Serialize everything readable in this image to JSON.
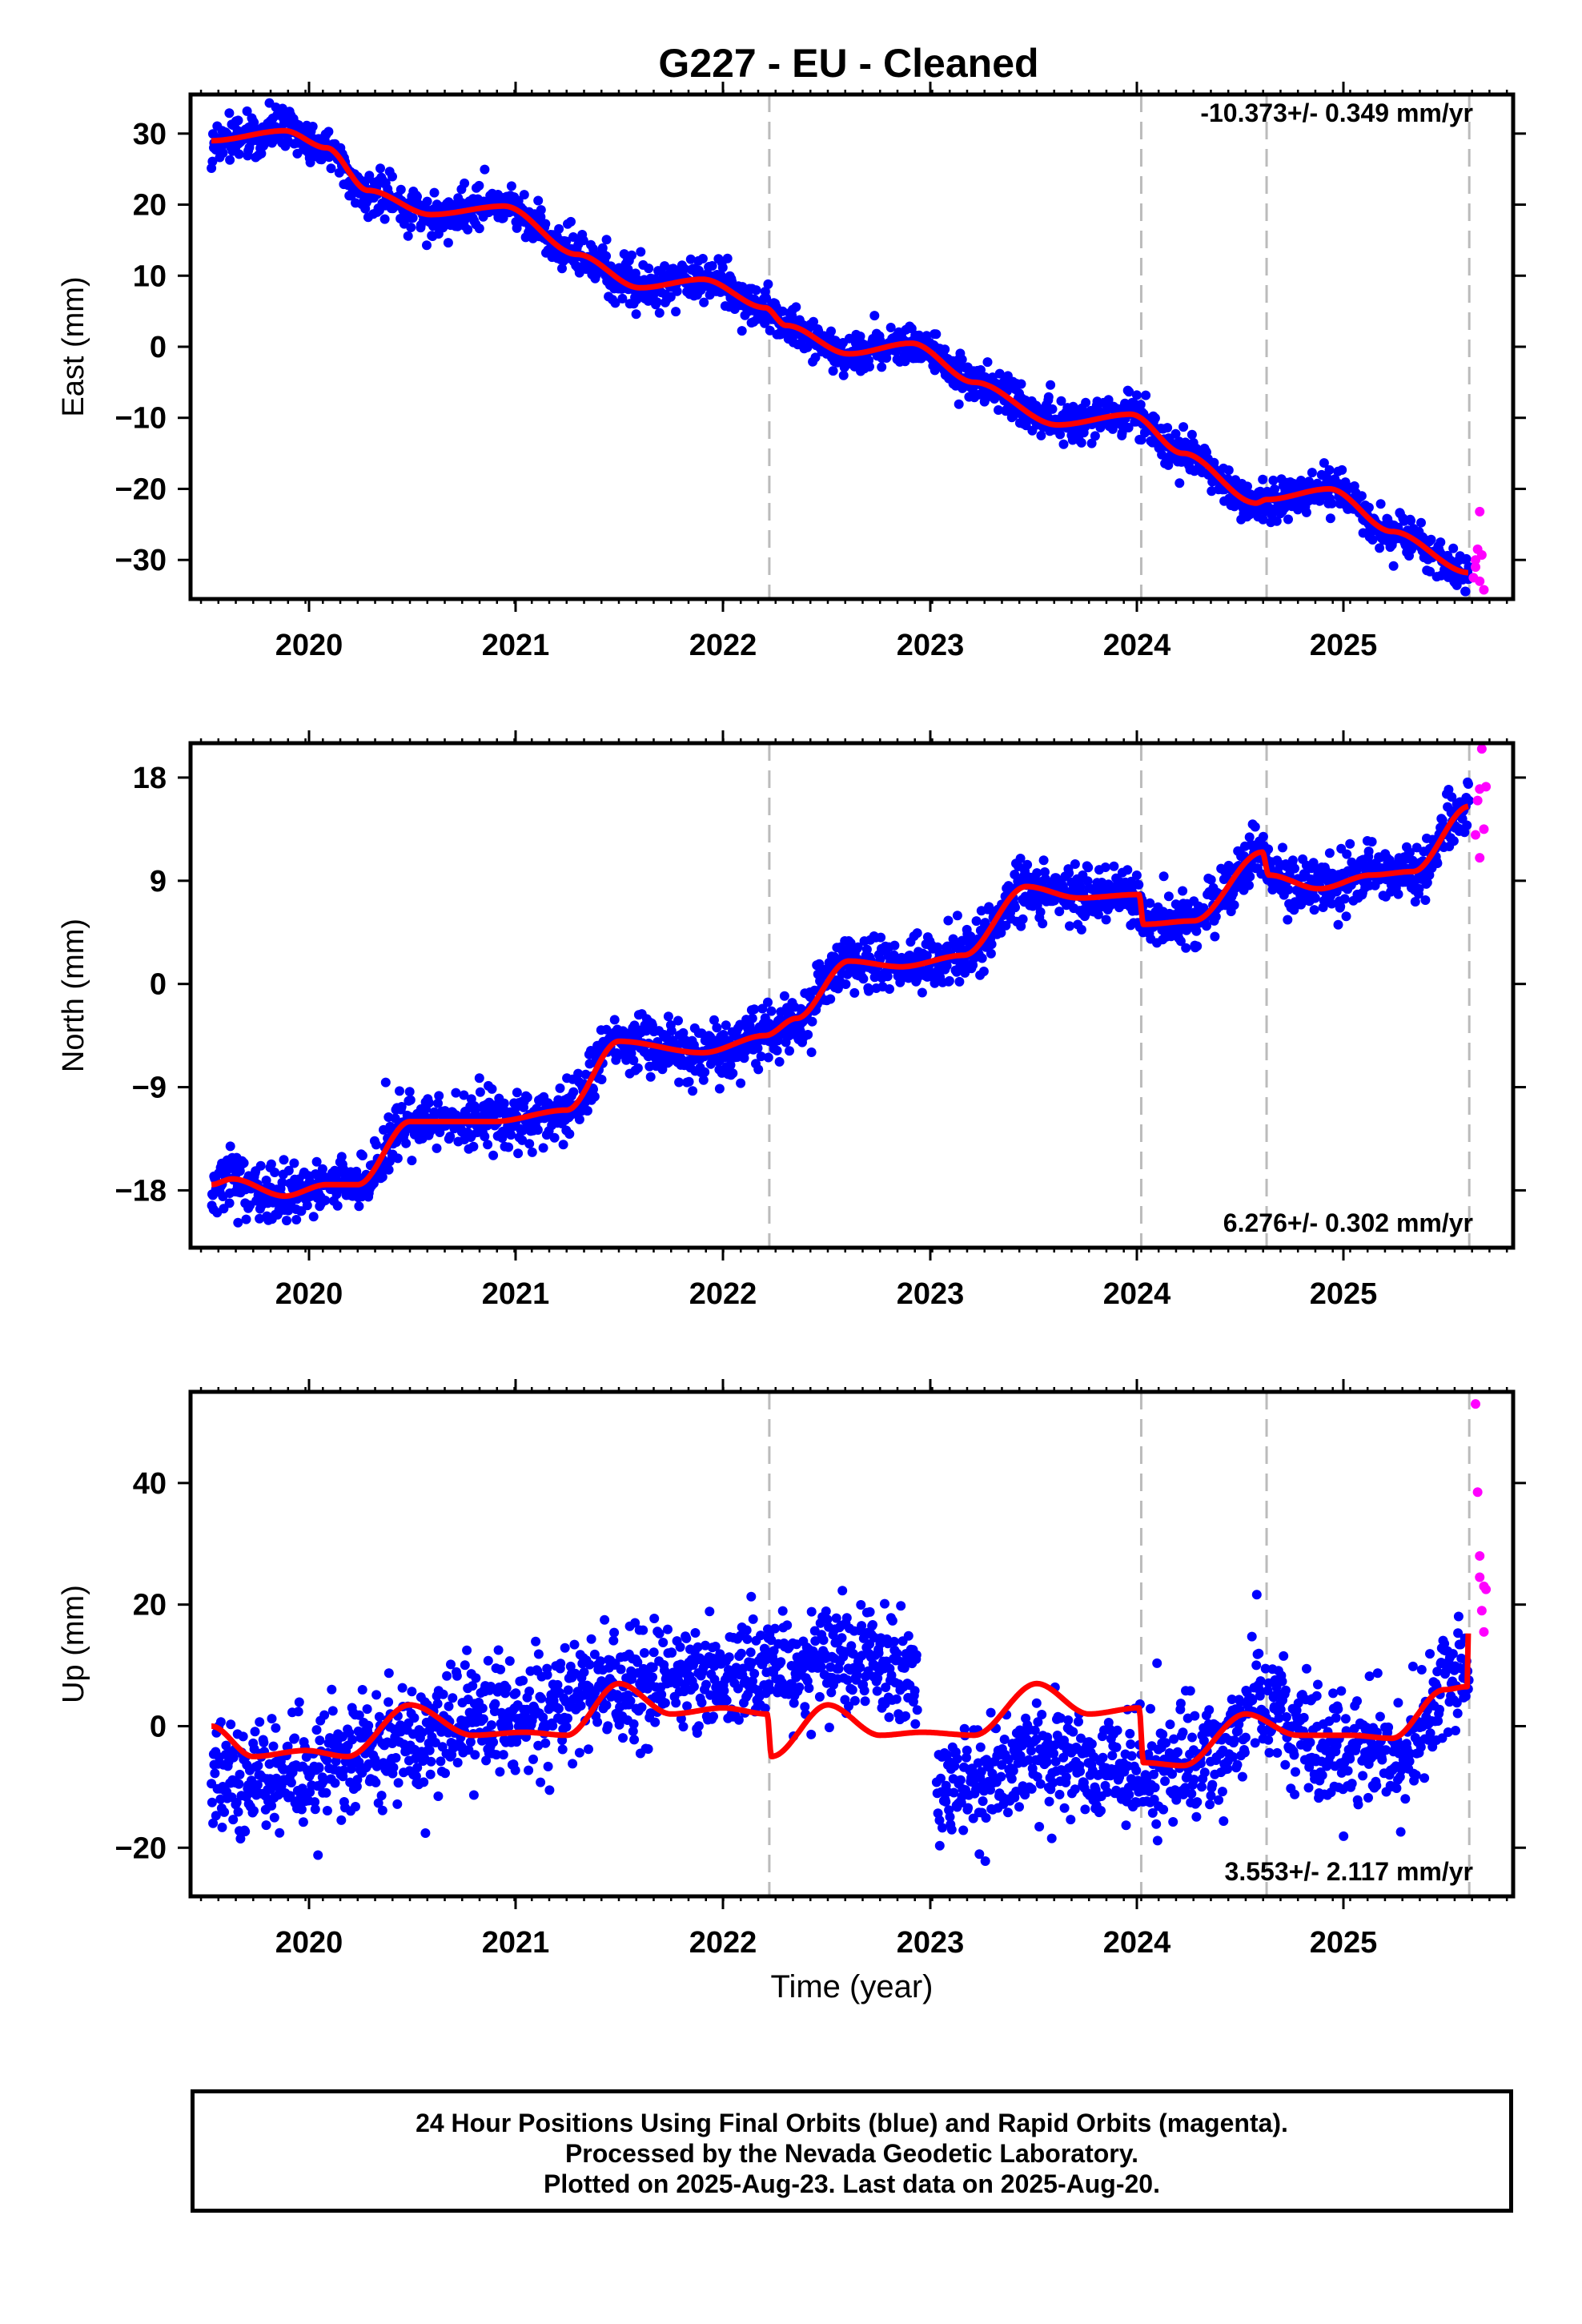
{
  "title": "G227  - EU - Cleaned",
  "xlabel": "Time (year)",
  "footer": {
    "line1": "24 Hour Positions Using Final Orbits (blue) and Rapid Orbits (magenta).",
    "line2": "Processed by the Nevada Geodetic Laboratory.",
    "line3": "Plotted on 2025-Aug-23. Last data on 2025-Aug-20."
  },
  "colors": {
    "final_orbits": "#0000ff",
    "rapid_orbits": "#ff00ff",
    "model": "#ff0000",
    "event_lines": "#bbbbbb"
  },
  "chart_data": [
    {
      "type": "scatter",
      "component": "east",
      "ylabel": "East (mm)",
      "rate_label": "-10.373+/- 0.349 mm/yr",
      "xlim": [
        2019.45,
        2025.78
      ],
      "ylim": [
        -35.5,
        35.5
      ],
      "xticks": [
        "2020",
        "2021",
        "2022",
        "2023",
        "2024",
        "2025"
      ],
      "yticks": [
        "30",
        "20",
        "10",
        "0",
        "−10",
        "−20",
        "−30"
      ],
      "ytick_values": [
        30,
        20,
        10,
        0,
        -10,
        -20,
        -30
      ],
      "event_lines": [
        2022.22,
        2024.0,
        2024.6,
        2025.57
      ],
      "trend": {
        "rate": -10.373,
        "annual_amp": 1.6,
        "annual_phase": 0.8,
        "semiannual_amp": 0.5,
        "semiannual_phase": 0.3
      },
      "anchors": [
        [
          2019.55,
          29.0
        ],
        [
          2019.9,
          30.4
        ],
        [
          2020.1,
          28.0
        ],
        [
          2020.3,
          22.0
        ],
        [
          2020.6,
          18.6
        ],
        [
          2020.95,
          19.8
        ],
        [
          2021.3,
          13.0
        ],
        [
          2021.6,
          8.3
        ],
        [
          2021.9,
          9.5
        ],
        [
          2022.2,
          5.5
        ],
        [
          2022.3,
          3.0
        ],
        [
          2022.6,
          -1.0
        ],
        [
          2022.9,
          0.5
        ],
        [
          2023.2,
          -5.0
        ],
        [
          2023.6,
          -11.0
        ],
        [
          2023.95,
          -9.5
        ],
        [
          2024.2,
          -15.0
        ],
        [
          2024.55,
          -22.0
        ],
        [
          2024.6,
          -21.5
        ],
        [
          2024.9,
          -20.0
        ],
        [
          2025.2,
          -26.0
        ],
        [
          2025.57,
          -31.8
        ]
      ],
      "noise_sd": 1.4,
      "rapid": [
        [
          2025.59,
          -32.5
        ],
        [
          2025.6,
          -30.0
        ],
        [
          2025.61,
          -28.5
        ],
        [
          2025.62,
          -33.0
        ],
        [
          2025.62,
          -23.2
        ],
        [
          2025.63,
          -29.3
        ],
        [
          2025.64,
          -34.2
        ],
        [
          2025.6,
          -31.0
        ]
      ]
    },
    {
      "type": "scatter",
      "component": "north",
      "ylabel": "North (mm)",
      "rate_label": "6.276+/- 0.302 mm/yr",
      "xlim": [
        2019.45,
        2025.78
      ],
      "ylim": [
        -23,
        21
      ],
      "xticks": [
        "2020",
        "2021",
        "2022",
        "2023",
        "2024",
        "2025"
      ],
      "yticks": [
        "18",
        "9",
        "0",
        "−9",
        "−18"
      ],
      "ytick_values": [
        18,
        9,
        0,
        -9,
        -18
      ],
      "event_lines": [
        2022.22,
        2024.0,
        2024.6,
        2025.57
      ],
      "anchors": [
        [
          2019.55,
          -17.5
        ],
        [
          2019.65,
          -17.0
        ],
        [
          2019.9,
          -18.5
        ],
        [
          2020.1,
          -17.5
        ],
        [
          2020.25,
          -17.5
        ],
        [
          2020.5,
          -12.0
        ],
        [
          2020.9,
          -12.0
        ],
        [
          2021.25,
          -11.0
        ],
        [
          2021.5,
          -5.0
        ],
        [
          2021.9,
          -6.0
        ],
        [
          2022.2,
          -4.5
        ],
        [
          2022.35,
          -3.0
        ],
        [
          2022.6,
          2.0
        ],
        [
          2022.85,
          1.5
        ],
        [
          2023.15,
          2.5
        ],
        [
          2023.45,
          8.5
        ],
        [
          2023.7,
          7.5
        ],
        [
          2023.99,
          7.8
        ],
        [
          2024.01,
          5.2
        ],
        [
          2024.25,
          5.5
        ],
        [
          2024.58,
          11.5
        ],
        [
          2024.61,
          9.5
        ],
        [
          2024.85,
          8.3
        ],
        [
          2025.1,
          9.5
        ],
        [
          2025.3,
          9.8
        ],
        [
          2025.57,
          15.5
        ]
      ],
      "noise_sd": 1.2,
      "rapid": [
        [
          2025.6,
          13.0
        ],
        [
          2025.61,
          16.0
        ],
        [
          2025.62,
          17.0
        ],
        [
          2025.63,
          20.5
        ],
        [
          2025.62,
          11.0
        ],
        [
          2025.64,
          13.5
        ],
        [
          2025.65,
          17.2
        ]
      ]
    },
    {
      "type": "scatter",
      "component": "up",
      "ylabel": "Up (mm)",
      "rate_label": "3.553+/- 2.117 mm/yr",
      "xlim": [
        2019.45,
        2025.78
      ],
      "ylim": [
        -28,
        55
      ],
      "xticks": [
        "2020",
        "2021",
        "2022",
        "2023",
        "2024",
        "2025"
      ],
      "yticks": [
        "40",
        "20",
        "0",
        "−20"
      ],
      "ytick_values": [
        40,
        20,
        0,
        -20
      ],
      "event_lines": [
        2022.22,
        2024.0,
        2024.6,
        2025.57
      ],
      "model_anchors": [
        [
          2019.55,
          0.0
        ],
        [
          2019.75,
          -5.0
        ],
        [
          2020.0,
          -4.0
        ],
        [
          2020.2,
          -5.0
        ],
        [
          2020.5,
          3.5
        ],
        [
          2020.8,
          -1.5
        ],
        [
          2021.05,
          -1.0
        ],
        [
          2021.25,
          -1.5
        ],
        [
          2021.5,
          7.0
        ],
        [
          2021.75,
          2.0
        ],
        [
          2022.0,
          3.0
        ],
        [
          2022.21,
          2.0
        ],
        [
          2022.23,
          -5.0
        ],
        [
          2022.5,
          3.5
        ],
        [
          2022.75,
          -1.5
        ],
        [
          2022.95,
          -1.0
        ],
        [
          2023.2,
          -1.5
        ],
        [
          2023.5,
          7.0
        ],
        [
          2023.75,
          2.0
        ],
        [
          2023.99,
          3.0
        ],
        [
          2024.01,
          -6.0
        ],
        [
          2024.2,
          -6.5
        ],
        [
          2024.5,
          2.0
        ],
        [
          2024.75,
          -1.5
        ],
        [
          2025.0,
          -1.5
        ],
        [
          2025.2,
          -2.0
        ],
        [
          2025.45,
          6.0
        ],
        [
          2025.56,
          6.5
        ],
        [
          2025.57,
          24.0
        ]
      ],
      "data_anchors": [
        [
          2019.55,
          -9.0
        ],
        [
          2020.0,
          -7.0
        ],
        [
          2020.5,
          -2.0
        ],
        [
          2021.0,
          2.0
        ],
        [
          2021.5,
          7.0
        ],
        [
          2022.0,
          8.0
        ],
        [
          2022.5,
          12.0
        ],
        [
          2022.9,
          10.0
        ],
        [
          2023.0,
          -12.0
        ],
        [
          2023.5,
          -5.0
        ],
        [
          2024.0,
          -8.0
        ],
        [
          2024.3,
          -6.0
        ],
        [
          2024.6,
          5.0
        ],
        [
          2024.8,
          -3.0
        ],
        [
          2025.2,
          -4.0
        ],
        [
          2025.57,
          10.0
        ]
      ],
      "noise_sd": 4.5,
      "rapid": [
        [
          2025.6,
          53.0
        ],
        [
          2025.61,
          38.5
        ],
        [
          2025.62,
          28.0
        ],
        [
          2025.62,
          24.5
        ],
        [
          2025.63,
          19.0
        ],
        [
          2025.64,
          15.5
        ],
        [
          2025.64,
          23.0
        ],
        [
          2025.65,
          22.5
        ]
      ]
    }
  ]
}
